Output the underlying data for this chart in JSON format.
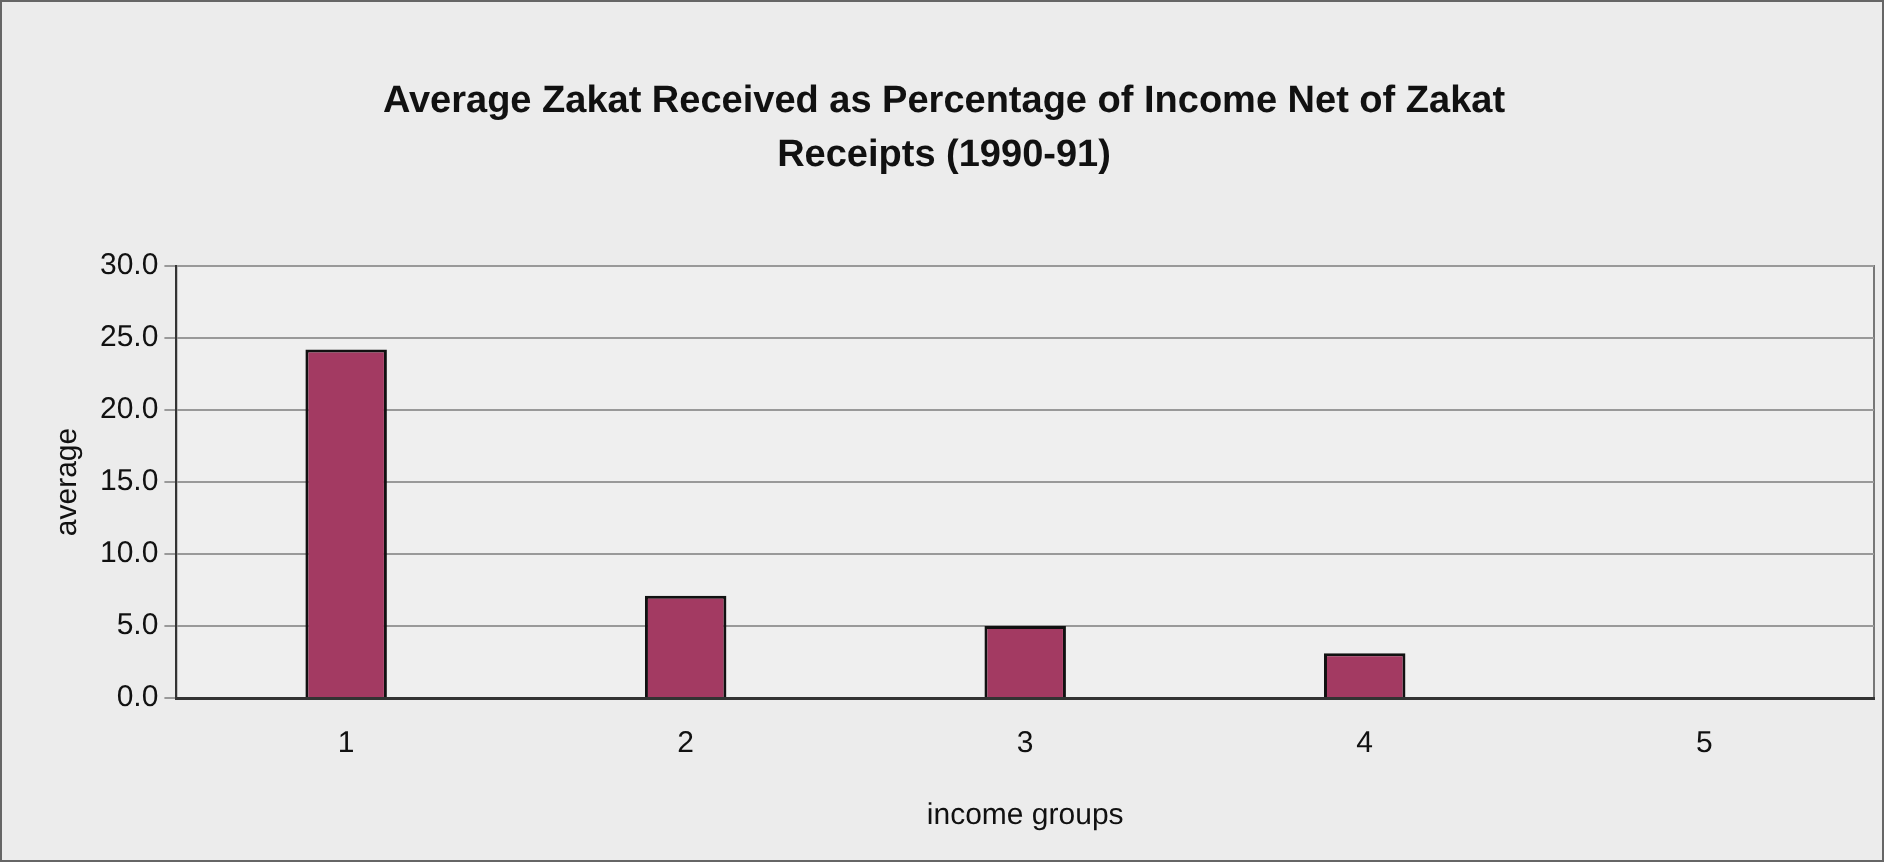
{
  "chart_data": {
    "type": "bar",
    "title": "Average Zakat Received as Percentage of Income Net of Zakat Receipts (1990-91)",
    "xlabel": "income groups",
    "ylabel": "average",
    "categories": [
      "1",
      "2",
      "3",
      "4",
      "5"
    ],
    "values": [
      24.2,
      7.1,
      5.0,
      3.1,
      0
    ],
    "color": "#a33a62",
    "ylim": [
      0,
      30
    ],
    "yticks": [
      {
        "value": 0,
        "label": "0.0"
      },
      {
        "value": 5,
        "label": "5.0"
      },
      {
        "value": 10,
        "label": "10.0"
      },
      {
        "value": 15,
        "label": "15.0"
      },
      {
        "value": 20,
        "label": "20.0"
      },
      {
        "value": 25,
        "label": "25.0"
      },
      {
        "value": 30,
        "label": "30.0"
      }
    ],
    "grid": "y",
    "legend": false
  }
}
